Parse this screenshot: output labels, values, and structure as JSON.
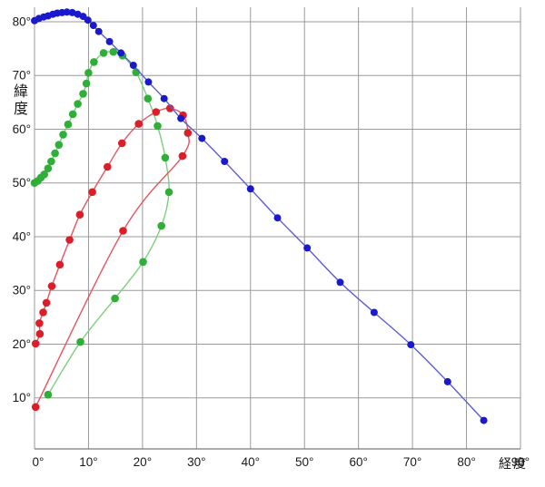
{
  "chart_data": {
    "type": "scatter",
    "title": "",
    "xlabel": "経度",
    "ylabel": "緯度",
    "xlim": [
      0,
      90
    ],
    "ylim": [
      0.5,
      82.7
    ],
    "grid": true,
    "legend_position": "none",
    "x_ticks": [
      0,
      10,
      20,
      30,
      40,
      50,
      60,
      70,
      80,
      90
    ],
    "x_tick_labels": [
      "0°",
      "10°",
      "20°",
      "30°",
      "40°",
      "50°",
      "60°",
      "70°",
      "80°",
      "90°"
    ],
    "y_ticks": [
      10,
      20,
      30,
      40,
      50,
      60,
      70,
      80
    ],
    "y_tick_labels": [
      "10°",
      "20°",
      "30°",
      "40°",
      "50°",
      "60°",
      "70°",
      "80°"
    ],
    "grid_color": "#9a9a9a",
    "axis_color": "#7a7a7a",
    "series": [
      {
        "name": "green-track",
        "dot_color": "#2fae38",
        "line_color": "#7ccf7c",
        "marker_radius": 4.3,
        "points": [
          [
            0.0,
            50.0
          ],
          [
            0.6,
            50.4
          ],
          [
            1.2,
            51.0
          ],
          [
            1.8,
            51.6
          ],
          [
            2.5,
            52.7
          ],
          [
            3.1,
            54.0
          ],
          [
            3.8,
            55.5
          ],
          [
            4.5,
            57.1
          ],
          [
            5.3,
            59.0
          ],
          [
            6.2,
            60.9
          ],
          [
            7.1,
            62.8
          ],
          [
            8.0,
            64.7
          ],
          [
            9.0,
            66.6
          ],
          [
            9.6,
            68.5
          ],
          [
            10.0,
            70.5
          ],
          [
            11.0,
            72.5
          ],
          [
            12.8,
            74.2
          ],
          [
            14.6,
            74.4
          ],
          [
            16.3,
            73.7
          ],
          [
            18.8,
            70.6
          ],
          [
            21.0,
            65.7
          ],
          [
            22.8,
            60.6
          ],
          [
            24.2,
            54.7
          ],
          [
            24.9,
            48.3
          ],
          [
            23.5,
            42.0
          ],
          [
            20.1,
            35.3
          ],
          [
            14.9,
            28.5
          ],
          [
            8.5,
            20.4
          ],
          [
            2.5,
            10.6
          ]
        ]
      },
      {
        "name": "red-track",
        "dot_color": "#dc1e28",
        "line_color": "#e25560",
        "marker_radius": 4.3,
        "points": [
          [
            0.2,
            20.1
          ],
          [
            1.0,
            21.9
          ],
          [
            0.9,
            23.9
          ],
          [
            1.6,
            25.9
          ],
          [
            2.2,
            27.7
          ],
          [
            3.2,
            30.8
          ],
          [
            4.7,
            34.8
          ],
          [
            6.5,
            39.4
          ],
          [
            8.4,
            44.1
          ],
          [
            10.7,
            48.3
          ],
          [
            13.5,
            53.0
          ],
          [
            16.2,
            57.4
          ],
          [
            19.3,
            61.0
          ],
          [
            22.5,
            63.2
          ],
          [
            25.1,
            63.9
          ],
          [
            27.5,
            62.6
          ],
          [
            28.4,
            59.3
          ],
          [
            27.4,
            55.0
          ],
          [
            16.4,
            41.1
          ],
          [
            0.2,
            8.3
          ]
        ]
      },
      {
        "name": "blue-track",
        "dot_color": "#1a1acc",
        "line_color": "#5c5cdb",
        "marker_radius": 4.0,
        "points": [
          [
            0.0,
            80.2
          ],
          [
            0.8,
            80.6
          ],
          [
            1.7,
            80.9
          ],
          [
            2.5,
            81.1
          ],
          [
            3.4,
            81.4
          ],
          [
            4.2,
            81.6
          ],
          [
            5.1,
            81.7
          ],
          [
            6.0,
            81.8
          ],
          [
            7.0,
            81.7
          ],
          [
            8.0,
            81.4
          ],
          [
            9.0,
            81.0
          ],
          [
            9.9,
            80.3
          ],
          [
            10.9,
            79.3
          ],
          [
            11.9,
            78.2
          ],
          [
            13.9,
            76.3
          ],
          [
            16.0,
            74.2
          ],
          [
            18.3,
            71.9
          ],
          [
            21.1,
            68.8
          ],
          [
            24.0,
            65.7
          ],
          [
            27.1,
            62.0
          ],
          [
            31.0,
            58.3
          ],
          [
            35.2,
            54.0
          ],
          [
            40.0,
            48.9
          ],
          [
            45.0,
            43.5
          ],
          [
            50.5,
            37.9
          ],
          [
            56.6,
            31.5
          ],
          [
            62.9,
            25.9
          ],
          [
            69.7,
            19.9
          ],
          [
            76.5,
            13.0
          ],
          [
            83.2,
            5.8
          ]
        ]
      }
    ]
  }
}
